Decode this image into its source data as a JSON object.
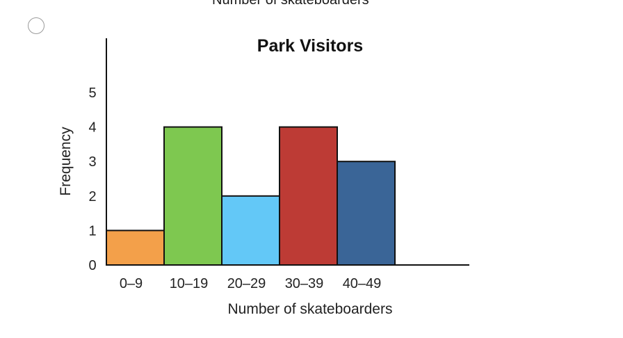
{
  "top_cutoff_text": "Number of skateboarders",
  "option": {
    "selected": false
  },
  "chart_data": {
    "type": "bar",
    "title": "Park Visitors",
    "xlabel": "Number of skateboarders",
    "ylabel": "Frequency",
    "categories": [
      "0–9",
      "10–19",
      "20–29",
      "30–39",
      "40–49"
    ],
    "values": [
      1,
      4,
      2,
      4,
      3
    ],
    "colors": [
      "#f3a04a",
      "#7ec850",
      "#63c8f7",
      "#bd3b35",
      "#3a6597"
    ],
    "yticks": [
      0,
      1,
      2,
      3,
      4,
      5
    ],
    "ylim": [
      0,
      6.5
    ],
    "grid": false
  }
}
